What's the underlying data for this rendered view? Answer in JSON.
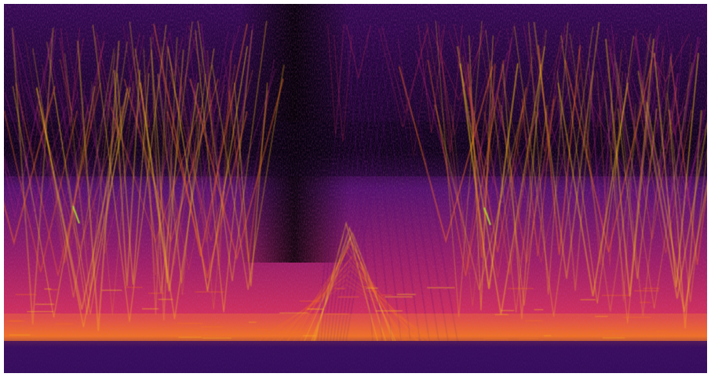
{
  "image": {
    "kind": "spectrogram",
    "palette": {
      "background": "#060013",
      "low": "#2a0a55",
      "mid_low": "#5a1475",
      "mid": "#9b1f7a",
      "mid_high": "#d4315a",
      "high": "#f06a22",
      "peak": "#f7c21a",
      "accent": "#a6e02a"
    }
  }
}
